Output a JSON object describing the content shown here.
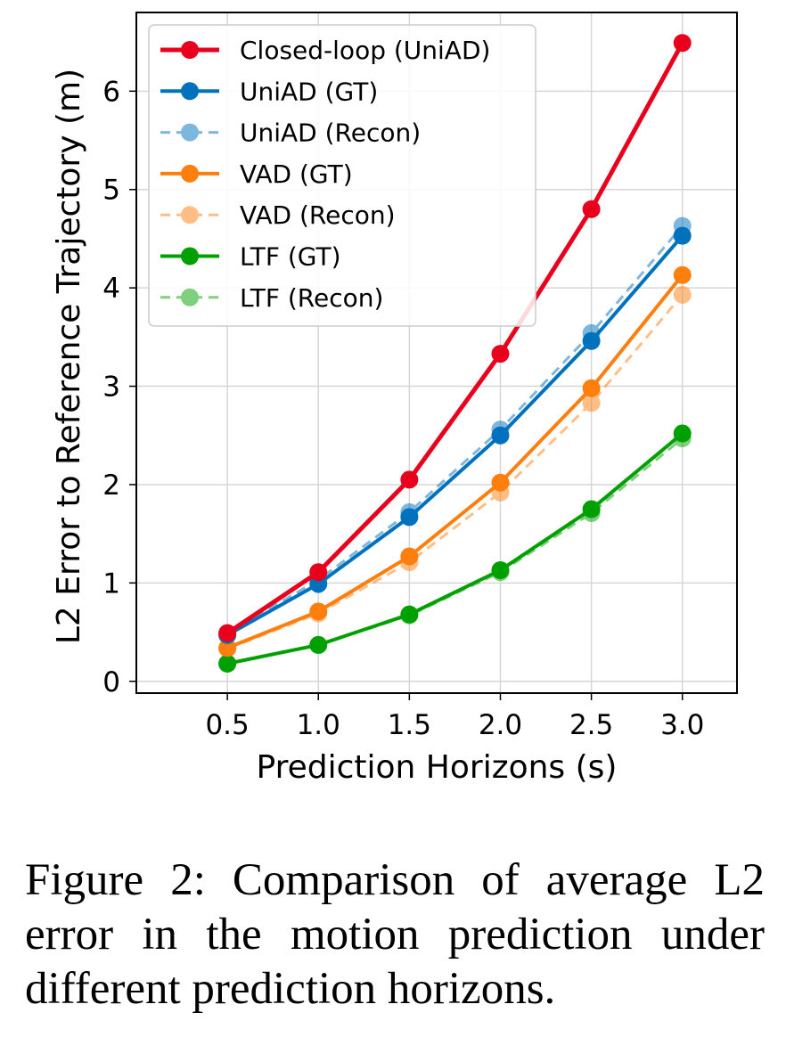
{
  "chart_data": {
    "type": "line",
    "title": "",
    "xlabel": "Prediction Horizons (s)",
    "ylabel": "L2 Error to Reference Trajectory (m)",
    "x": [
      0.5,
      1.0,
      1.5,
      2.0,
      2.5,
      3.0
    ],
    "x_tick_labels": [
      "0.5",
      "1.0",
      "1.5",
      "2.0",
      "2.5",
      "3.0"
    ],
    "y_ticks": [
      0,
      1,
      2,
      3,
      4,
      5,
      6
    ],
    "y_tick_labels": [
      "0",
      "1",
      "2",
      "3",
      "4",
      "5",
      "6"
    ],
    "xlim": [
      0.0,
      3.3
    ],
    "ylim": [
      -0.12,
      6.8
    ],
    "grid": true,
    "legend_position": "top-left",
    "series": [
      {
        "name": "Closed-loop (UniAD)",
        "color": "#e8001c",
        "style": "solid",
        "alpha": 1.0,
        "values": [
          0.49,
          1.11,
          2.05,
          3.33,
          4.8,
          6.49
        ]
      },
      {
        "name": "UniAD (GT)",
        "color": "#0072bd",
        "style": "solid",
        "alpha": 1.0,
        "values": [
          0.47,
          0.99,
          1.67,
          2.5,
          3.46,
          4.53
        ]
      },
      {
        "name": "UniAD (Recon)",
        "color": "#0072bd",
        "style": "dashed",
        "alpha": 0.5,
        "values": [
          0.49,
          1.03,
          1.72,
          2.56,
          3.54,
          4.63
        ]
      },
      {
        "name": "VAD (GT)",
        "color": "#ff7f0e",
        "style": "solid",
        "alpha": 1.0,
        "values": [
          0.34,
          0.71,
          1.27,
          2.02,
          2.98,
          4.13
        ]
      },
      {
        "name": "VAD (Recon)",
        "color": "#ff7f0e",
        "style": "dashed",
        "alpha": 0.5,
        "values": [
          0.33,
          0.69,
          1.21,
          1.92,
          2.83,
          3.93
        ]
      },
      {
        "name": "LTF (GT)",
        "color": "#00a000",
        "style": "solid",
        "alpha": 1.0,
        "values": [
          0.18,
          0.37,
          0.68,
          1.13,
          1.75,
          2.52
        ]
      },
      {
        "name": "LTF (Recon)",
        "color": "#00a000",
        "style": "dashed",
        "alpha": 0.5,
        "values": [
          0.18,
          0.37,
          0.67,
          1.11,
          1.71,
          2.47
        ]
      }
    ]
  },
  "caption": {
    "text": "Figure 2: Comparison of average L2 error in the motion prediction under different prediction horizons."
  }
}
